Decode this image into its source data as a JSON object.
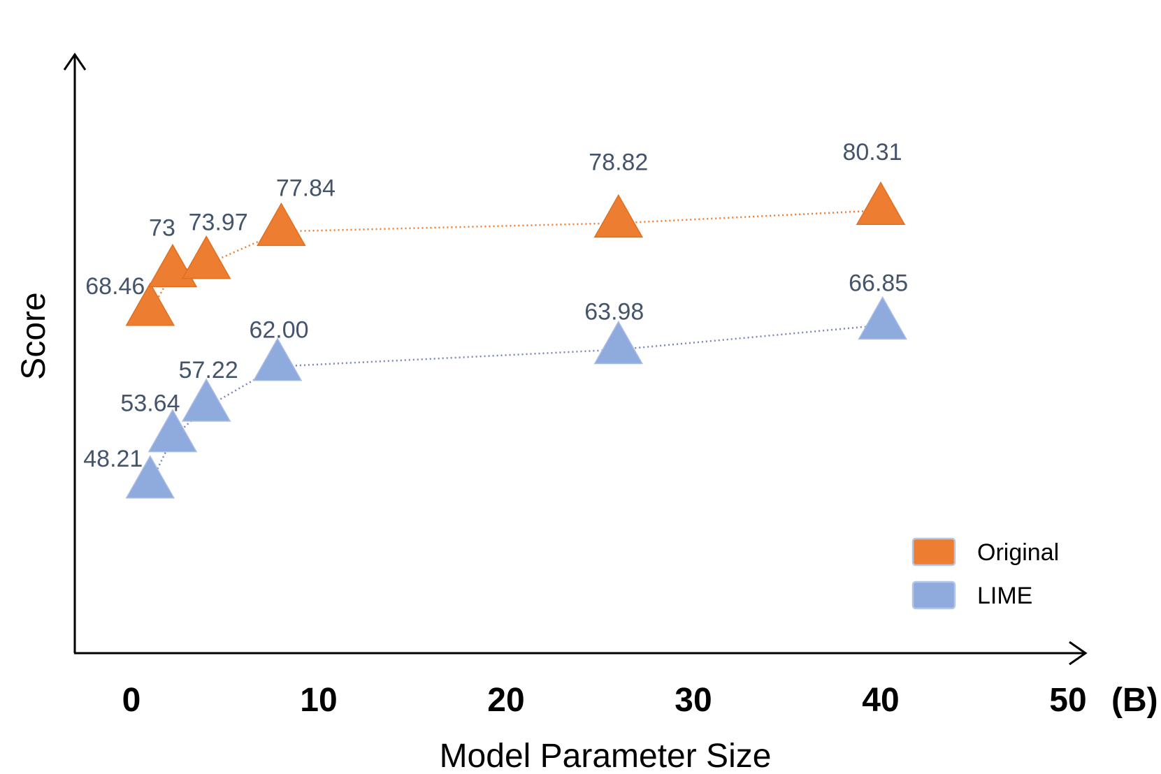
{
  "chart_data": {
    "type": "scatter",
    "title": "",
    "xlabel": "Model Parameter Size",
    "ylabel": "Score",
    "x_unit": "(B)",
    "x_ticks": [
      0,
      10,
      20,
      30,
      40,
      50
    ],
    "xlim": [
      0,
      50
    ],
    "ylim": [
      30,
      90
    ],
    "legend_position": "bottom-right",
    "grid": false,
    "series": [
      {
        "name": "Original",
        "color": "#ed7d31",
        "x": [
          1,
          2.2,
          4,
          8,
          26,
          40
        ],
        "values": [
          68.46,
          73,
          73.97,
          77.84,
          78.82,
          80.31
        ],
        "labels": [
          "68.46",
          "73",
          "73.97",
          "77.84",
          "78.82",
          "80.31"
        ]
      },
      {
        "name": "LIME",
        "color": "#8faadc",
        "x": [
          1,
          2.2,
          4,
          7.8,
          26,
          40.1
        ],
        "values": [
          48.21,
          53.64,
          57.22,
          62.0,
          63.98,
          66.85
        ],
        "labels": [
          "48.21",
          "53.64",
          "57.22",
          "62.00",
          "63.98",
          "66.85"
        ]
      }
    ]
  }
}
